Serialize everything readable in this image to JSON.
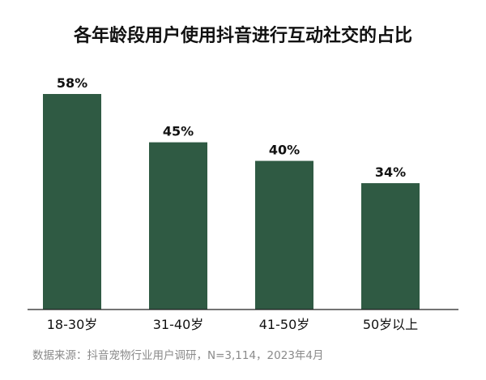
{
  "chart_data": {
    "type": "bar",
    "title": "各年龄段用户使用抖音进行互动社交的占比",
    "categories": [
      "18-30岁",
      "31-40岁",
      "41-50岁",
      "50岁以上"
    ],
    "values": [
      58,
      45,
      40,
      34
    ],
    "value_labels": [
      "58%",
      "45%",
      "40%",
      "34%"
    ],
    "unit": "%",
    "xlabel": "",
    "ylabel": "",
    "ylim": [
      0,
      58
    ],
    "grid": false,
    "bar_color": "#2f5a43",
    "axis_color": "#222222"
  },
  "source": "数据来源：抖音宠物行业用户调研，N=3,114，2023年4月"
}
